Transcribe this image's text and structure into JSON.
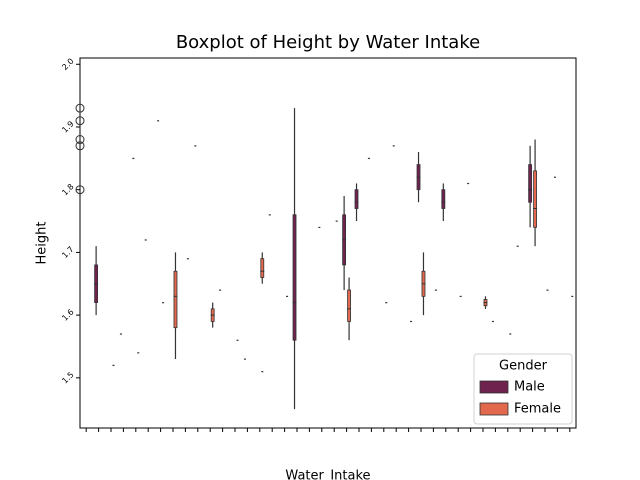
{
  "chart_data": {
    "type": "box",
    "title": "Boxplot of Height by Water Intake",
    "xlabel": "Water_Intake",
    "ylabel": "Height",
    "categories": [
      null,
      null,
      null,
      null,
      null,
      null,
      null,
      null,
      null,
      null,
      null,
      null,
      null,
      null,
      null,
      null,
      null,
      null,
      null,
      null,
      null,
      null,
      null,
      null,
      null,
      null,
      null,
      null,
      null,
      null,
      null,
      null,
      null,
      null,
      null,
      null,
      null,
      null,
      null,
      null
    ],
    "ylim": [
      1.42,
      2.01
    ],
    "yticks": [
      1.5,
      1.6,
      1.7,
      1.8,
      1.9,
      {
        "value": 2,
        "label": "2.0"
      }
    ],
    "legend": {
      "title": "Gender",
      "loc": "lower right"
    },
    "series": [
      {
        "name": "Male",
        "color": "#70224f",
        "boxes": [
          {
            "category": 1,
            "whislo": 1.6,
            "q1": 1.62,
            "med": 1.65,
            "q3": 1.68,
            "whishi": 1.71
          },
          {
            "category": 17,
            "whislo": 1.45,
            "q1": 1.56,
            "med": 1.62,
            "q3": 1.76,
            "whishi": 1.93
          },
          {
            "category": 21,
            "whislo": 1.64,
            "q1": 1.68,
            "med": 1.72,
            "q3": 1.76,
            "whishi": 1.79
          },
          {
            "category": 22,
            "whislo": 1.75,
            "q1": 1.77,
            "med": 1.78,
            "q3": 1.8,
            "whishi": 1.81
          },
          {
            "category": 27,
            "whislo": 1.78,
            "q1": 1.8,
            "med": 1.82,
            "q3": 1.84,
            "whishi": 1.86
          },
          {
            "category": 29,
            "whislo": 1.75,
            "q1": 1.77,
            "med": 1.78,
            "q3": 1.8,
            "whishi": 1.81
          },
          {
            "category": 36,
            "whislo": 1.74,
            "q1": 1.78,
            "med": 1.8,
            "q3": 1.84,
            "whishi": 1.87
          }
        ],
        "points": [
          {
            "category": 3,
            "value": 1.57
          },
          {
            "category": 4,
            "value": 1.85
          },
          {
            "category": 5,
            "value": 1.72
          },
          {
            "category": 6,
            "value": 1.91
          },
          {
            "category": 9,
            "value": 1.87
          },
          {
            "category": 11,
            "value": 1.64
          },
          {
            "category": 13,
            "value": 1.53
          },
          {
            "category": 15,
            "value": 1.76
          },
          {
            "category": 19,
            "value": 1.74
          },
          {
            "category": 23,
            "value": 1.85
          },
          {
            "category": 25,
            "value": 1.87
          },
          {
            "category": 31,
            "value": 1.81
          },
          {
            "category": 33,
            "value": 1.59
          },
          {
            "category": 35,
            "value": 1.71
          },
          {
            "category": 38,
            "value": 1.82
          }
        ],
        "fliers": [
          {
            "category": 0,
            "value": 1.93
          },
          {
            "category": 0,
            "value": 1.91
          },
          {
            "category": 0,
            "value": 1.88
          },
          {
            "category": 0,
            "value": 1.87
          },
          {
            "category": 0,
            "value": 1.8
          }
        ]
      },
      {
        "name": "Female",
        "color": "#e2694e",
        "boxes": [
          {
            "category": 7,
            "whislo": 1.53,
            "q1": 1.58,
            "med": 1.63,
            "q3": 1.67,
            "whishi": 1.7
          },
          {
            "category": 10,
            "whislo": 1.58,
            "q1": 1.59,
            "med": 1.6,
            "q3": 1.61,
            "whishi": 1.62
          },
          {
            "category": 14,
            "whislo": 1.65,
            "q1": 1.66,
            "med": 1.67,
            "q3": 1.69,
            "whishi": 1.7
          },
          {
            "category": 21,
            "whislo": 1.56,
            "q1": 1.59,
            "med": 1.61,
            "q3": 1.64,
            "whishi": 1.66
          },
          {
            "category": 27,
            "whislo": 1.6,
            "q1": 1.63,
            "med": 1.65,
            "q3": 1.67,
            "whishi": 1.7
          },
          {
            "category": 32,
            "whislo": 1.61,
            "q1": 1.615,
            "med": 1.62,
            "q3": 1.625,
            "whishi": 1.63
          },
          {
            "category": 36,
            "whislo": 1.71,
            "q1": 1.74,
            "med": 1.77,
            "q3": 1.83,
            "whishi": 1.88
          }
        ],
        "points": [
          {
            "category": 2,
            "value": 1.52
          },
          {
            "category": 4,
            "value": 1.54
          },
          {
            "category": 6,
            "value": 1.62
          },
          {
            "category": 8,
            "value": 1.69
          },
          {
            "category": 12,
            "value": 1.56
          },
          {
            "category": 14,
            "value": 1.51
          },
          {
            "category": 16,
            "value": 1.63
          },
          {
            "category": 20,
            "value": 1.75
          },
          {
            "category": 24,
            "value": 1.62
          },
          {
            "category": 26,
            "value": 1.59
          },
          {
            "category": 28,
            "value": 1.64
          },
          {
            "category": 30,
            "value": 1.63
          },
          {
            "category": 34,
            "value": 1.57
          },
          {
            "category": 37,
            "value": 1.64
          },
          {
            "category": 39,
            "value": 1.63
          }
        ],
        "fliers": []
      }
    ]
  }
}
